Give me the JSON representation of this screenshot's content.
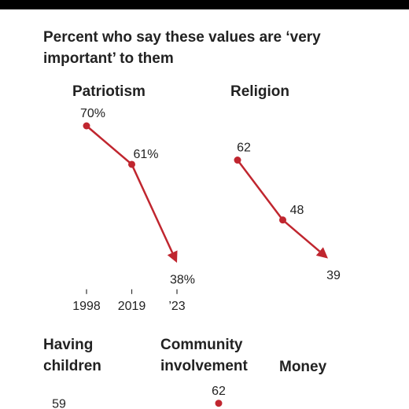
{
  "title": "Percent who say these values are ‘very important’ to them",
  "chart_data": [
    {
      "type": "line",
      "title": "Patriotism",
      "categories": [
        "1998",
        "2019",
        "’23"
      ],
      "values": [
        70,
        61,
        38
      ],
      "value_labels": [
        "70%",
        "61%",
        "38%"
      ],
      "color": "#c0262f",
      "ylim": [
        30,
        75
      ]
    },
    {
      "type": "line",
      "title": "Religion",
      "categories": [
        null,
        null,
        null
      ],
      "values": [
        62,
        48,
        39
      ],
      "color": "#c0262f",
      "ylim": [
        30,
        75
      ]
    },
    {
      "type": "line",
      "title": "Having children",
      "categories": [
        null
      ],
      "values": [
        59
      ],
      "color": "#c0262f",
      "ylim": [
        30,
        75
      ]
    },
    {
      "type": "line",
      "title": "Community involvement",
      "categories": [
        null
      ],
      "values": [
        62
      ],
      "color": "#c0262f",
      "ylim": [
        30,
        75
      ]
    },
    {
      "type": "line",
      "title": "Money",
      "categories": [],
      "values": [],
      "color": "#c0262f",
      "ylim": [
        30,
        75
      ]
    }
  ]
}
